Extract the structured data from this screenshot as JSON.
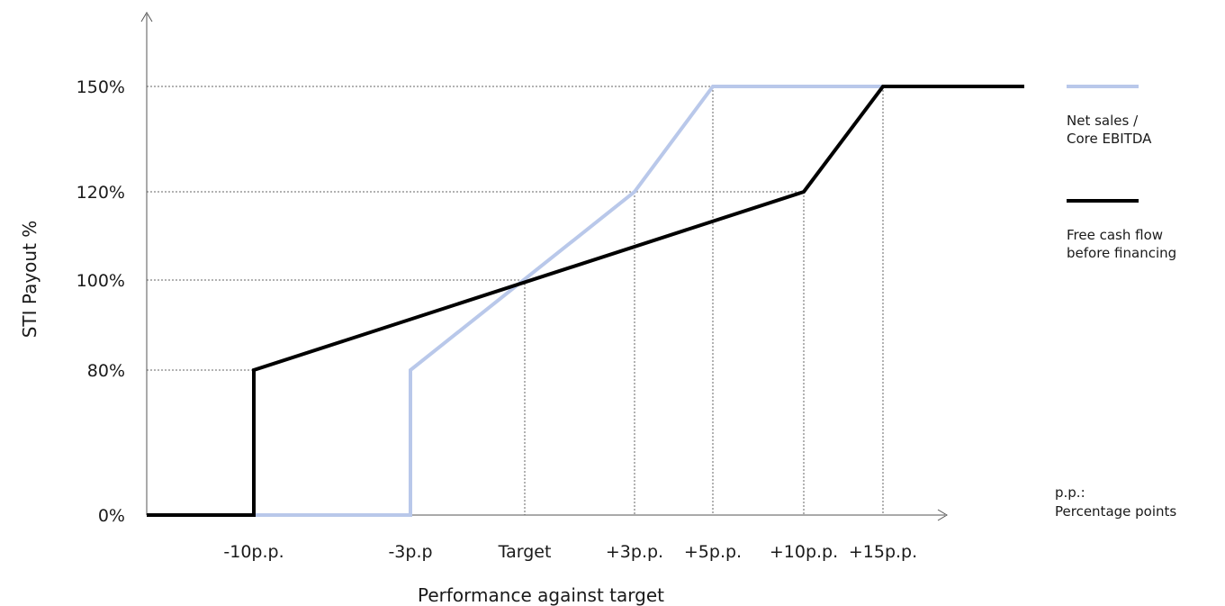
{
  "chart_data": {
    "type": "line",
    "xlabel": "Performance against target",
    "ylabel": "STI Payout %",
    "x_ticks": [
      "-10p.p.",
      "-3p.p",
      "Target",
      "+3p.p.",
      "+5p.p.",
      "+10p.p.",
      "+15p.p."
    ],
    "x_tick_values": [
      -10,
      -3,
      0,
      3,
      5,
      10,
      15
    ],
    "y_ticks": [
      "0%",
      "80%",
      "100%",
      "120%",
      "150%"
    ],
    "y_tick_values": [
      0,
      80,
      100,
      120,
      150
    ],
    "grid": "dotted guide lines at key payout levels and thresholds",
    "legend_position": "right",
    "series": [
      {
        "name": "Net sales / Core EBITDA",
        "color": "#b9c8ea",
        "points": [
          [
            -10,
            0
          ],
          [
            -3,
            0
          ],
          [
            -3,
            80
          ],
          [
            3,
            120
          ],
          [
            5,
            150
          ],
          [
            20,
            150
          ]
        ]
      },
      {
        "name": "Free cash flow before financing",
        "color": "#000000",
        "points": [
          [
            -20,
            0
          ],
          [
            -10,
            0
          ],
          [
            -10,
            80
          ],
          [
            10,
            120
          ],
          [
            15,
            150
          ],
          [
            20,
            150
          ]
        ]
      }
    ],
    "legend": [
      {
        "lines": [
          "Net sales /",
          "Core EBITDA"
        ],
        "color": "#b9c8ea"
      },
      {
        "lines": [
          "Free cash flow",
          "before financing"
        ],
        "color": "#000000"
      }
    ],
    "note": {
      "lines": [
        "p.p.:",
        "Percentage points"
      ]
    }
  }
}
